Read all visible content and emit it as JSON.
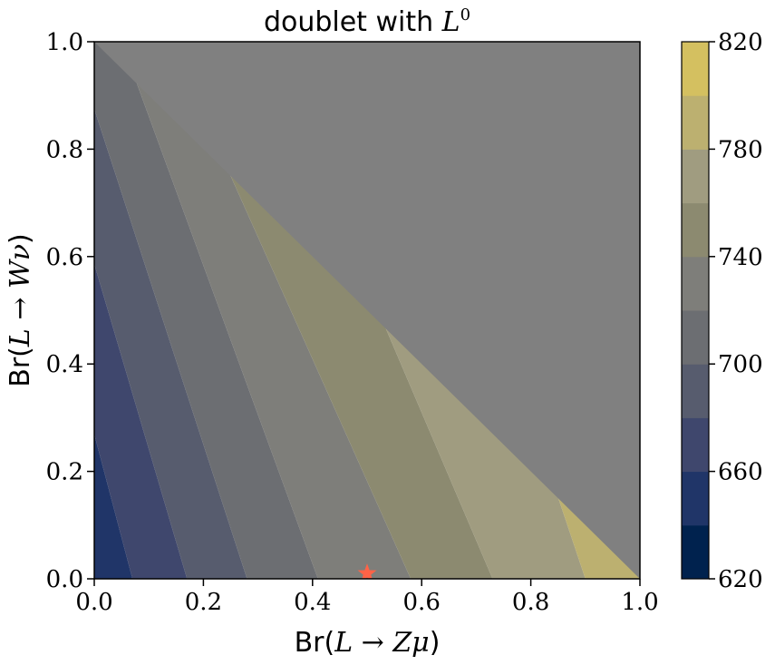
{
  "chart_data": {
    "type": "contour",
    "title": {
      "prefix": "doublet with ",
      "math": "L",
      "superscript": "0"
    },
    "xlabel": {
      "prefix": "Br(",
      "math": "L → Zμ",
      "suffix": ")"
    },
    "ylabel": {
      "prefix": "Br(",
      "math": "L → Wν",
      "suffix": ")"
    },
    "xlim": [
      0.0,
      1.0
    ],
    "ylim": [
      0.0,
      1.0
    ],
    "x_ticks": [
      "0.0",
      "0.2",
      "0.4",
      "0.6",
      "0.8",
      "1.0"
    ],
    "y_ticks": [
      "0.0",
      "0.2",
      "0.4",
      "0.6",
      "0.8",
      "1.0"
    ],
    "valid_region": "x + y <= 1",
    "invalid_region_color": "#808080",
    "colorbar": {
      "range": [
        620,
        820
      ],
      "ticks": [
        "620",
        "660",
        "700",
        "740",
        "780",
        "820"
      ],
      "levels": [
        620,
        640,
        660,
        680,
        700,
        720,
        740,
        760,
        780,
        800,
        820
      ],
      "colors": [
        "#00224e",
        "#203568",
        "#3f476d",
        "#575c6e",
        "#6c6e72",
        "#7e7e7a",
        "#8c8a70",
        "#a09c80",
        "#bcb070",
        "#d4c060",
        "#f0dc3c"
      ]
    },
    "contour_boundaries": [
      {
        "value": 660,
        "x_at_y0": 0.07,
        "x_at_y1": -0.19
      },
      {
        "value": 680,
        "x_at_y0": 0.17,
        "x_at_y1": -0.12
      },
      {
        "value": 700,
        "x_at_y0": 0.28,
        "x_at_y1": -0.04
      },
      {
        "value": 720,
        "x_at_y0": 0.41,
        "x_at_y1": 0.05
      },
      {
        "value": 740,
        "x_at_y0": 0.58,
        "x_at_y1": 0.14
      },
      {
        "value": 760,
        "x_at_y0": 0.73,
        "x_at_y1": 0.31
      },
      {
        "value": 780,
        "x_at_y0": 0.9,
        "x_at_y1": 0.57
      }
    ],
    "marker": {
      "x": 0.5,
      "y": 0.01,
      "shape": "star",
      "color": "#ff6347"
    }
  }
}
